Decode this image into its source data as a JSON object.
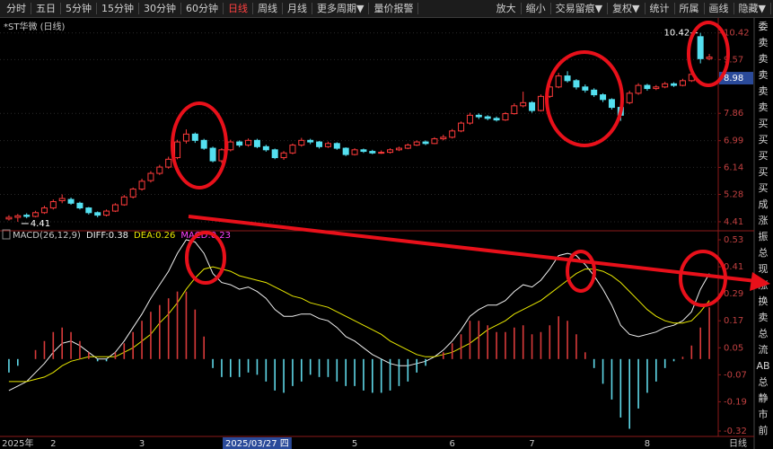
{
  "toolbar": {
    "left": [
      "分时",
      "五日",
      "5分钟",
      "15分钟",
      "30分钟",
      "60分钟",
      "日线",
      "周线",
      "月线",
      "更多周期▼",
      "量价报警"
    ],
    "right": [
      "放大",
      "缩小",
      "交易留痕▼",
      "复权▼",
      "统计",
      "所属",
      "画线",
      "隐藏▼"
    ]
  },
  "sidebar": [
    "委",
    "卖",
    "卖",
    "卖",
    "卖",
    "卖",
    "买",
    "买",
    "买",
    "买",
    "买",
    "成",
    "涨",
    "振",
    "总",
    "现",
    "涨",
    "换",
    "卖",
    "总",
    "流",
    "AB",
    "总",
    "静",
    "市",
    "前"
  ],
  "period_label": "日线",
  "chart_data": [
    {
      "type": "candlestick",
      "title": "*ST华微 (日线)",
      "categories": [
        null,
        "2025年",
        null,
        null,
        null,
        "2",
        null,
        null,
        null,
        null,
        null,
        null,
        null,
        null,
        null,
        "3",
        null,
        null,
        null,
        null,
        null,
        null,
        null,
        null,
        null,
        null,
        null,
        null,
        "2025/03/27 四",
        null,
        null,
        null,
        null,
        null,
        null,
        null,
        null,
        null,
        null,
        "5",
        null,
        null,
        null,
        null,
        null,
        null,
        null,
        null,
        null,
        null,
        "6",
        null,
        null,
        null,
        null,
        null,
        null,
        null,
        null,
        "7",
        null,
        null,
        null,
        null,
        null,
        null,
        null,
        null,
        null,
        null,
        null,
        null,
        "8",
        null,
        null,
        null,
        null,
        null,
        null,
        null
      ],
      "open": [
        4.5,
        4.55,
        4.62,
        4.58,
        4.7,
        4.85,
        5.08,
        5.12,
        5.0,
        4.85,
        4.7,
        4.62,
        4.75,
        4.95,
        5.2,
        5.45,
        5.72,
        5.95,
        6.15,
        6.45,
        6.98,
        7.2,
        7.0,
        6.75,
        6.35,
        6.7,
        6.95,
        6.85,
        7.0,
        6.8,
        6.7,
        6.45,
        6.6,
        6.85,
        7.0,
        6.95,
        6.8,
        6.9,
        6.75,
        6.55,
        6.7,
        6.65,
        6.6,
        6.62,
        6.7,
        6.75,
        6.85,
        6.95,
        6.9,
        7.05,
        7.1,
        7.3,
        7.55,
        7.8,
        7.75,
        7.7,
        7.65,
        7.85,
        8.1,
        8.2,
        7.95,
        8.4,
        8.7,
        9.05,
        8.9,
        8.7,
        8.6,
        8.45,
        8.3,
        8.05,
        8.2,
        8.5,
        8.75,
        8.65,
        8.7,
        8.8,
        8.75,
        8.9,
        10.3,
        9.6
      ],
      "high": [
        4.62,
        4.66,
        4.68,
        4.76,
        4.92,
        5.12,
        5.28,
        5.18,
        5.05,
        4.88,
        4.74,
        4.8,
        5.0,
        5.26,
        5.5,
        5.78,
        6.02,
        6.22,
        6.48,
        7.02,
        7.35,
        7.25,
        7.05,
        6.8,
        6.75,
        7.02,
        7.0,
        7.06,
        7.05,
        6.86,
        6.74,
        6.66,
        6.9,
        7.08,
        7.05,
        6.98,
        6.96,
        6.94,
        6.78,
        6.75,
        6.74,
        6.7,
        6.68,
        6.75,
        6.8,
        6.9,
        7.0,
        7.0,
        7.1,
        7.18,
        7.36,
        7.6,
        7.88,
        7.86,
        7.8,
        7.76,
        7.9,
        8.18,
        8.55,
        8.25,
        8.46,
        8.78,
        9.15,
        9.2,
        8.95,
        8.78,
        8.66,
        8.5,
        8.34,
        8.1,
        8.58,
        8.82,
        8.8,
        8.76,
        8.86,
        8.85,
        8.96,
        9.18,
        10.42,
        9.75
      ],
      "low": [
        4.45,
        4.41,
        4.52,
        4.55,
        4.66,
        4.8,
        5.0,
        4.95,
        4.8,
        4.64,
        4.55,
        4.58,
        4.72,
        4.92,
        5.15,
        5.4,
        5.66,
        5.9,
        6.1,
        6.4,
        6.9,
        6.92,
        6.7,
        6.3,
        6.28,
        6.65,
        6.78,
        6.8,
        6.75,
        6.64,
        6.4,
        6.38,
        6.56,
        6.8,
        6.88,
        6.74,
        6.76,
        6.7,
        6.5,
        6.52,
        6.6,
        6.56,
        6.57,
        6.58,
        6.66,
        6.72,
        6.82,
        6.85,
        6.88,
        7.0,
        7.06,
        7.26,
        7.5,
        7.68,
        7.64,
        7.6,
        7.62,
        7.82,
        8.05,
        7.88,
        7.92,
        8.35,
        8.66,
        8.84,
        8.62,
        8.52,
        8.38,
        8.22,
        7.98,
        7.62,
        8.15,
        8.45,
        8.58,
        8.6,
        8.66,
        8.7,
        8.72,
        8.86,
        9.45,
        9.55
      ],
      "close": [
        4.55,
        4.6,
        4.58,
        4.7,
        4.85,
        5.05,
        5.15,
        5.0,
        4.85,
        4.7,
        4.62,
        4.75,
        4.95,
        5.2,
        5.45,
        5.7,
        5.95,
        6.15,
        6.4,
        6.95,
        7.2,
        7.0,
        6.75,
        6.35,
        6.7,
        6.95,
        6.85,
        7.0,
        6.8,
        6.7,
        6.45,
        6.6,
        6.85,
        7.0,
        6.95,
        6.8,
        6.9,
        6.75,
        6.55,
        6.7,
        6.65,
        6.6,
        6.62,
        6.7,
        6.75,
        6.85,
        6.95,
        6.9,
        7.05,
        7.1,
        7.3,
        7.55,
        7.8,
        7.75,
        7.7,
        7.65,
        7.85,
        8.1,
        8.2,
        7.95,
        8.4,
        8.7,
        9.05,
        8.9,
        8.7,
        8.6,
        8.45,
        8.3,
        8.05,
        7.8,
        8.5,
        8.75,
        8.65,
        8.7,
        8.8,
        8.75,
        8.9,
        9.1,
        9.6,
        9.65
      ],
      "colors": {
        "up": "#ff3b3b",
        "down": "#54e0f0"
      },
      "high_mark": 10.42,
      "low_mark": 4.41,
      "last_price": 8.98,
      "ylim": [
        4.18,
        10.61
      ],
      "yticks": [
        4.41,
        5.28,
        6.14,
        6.99,
        7.86,
        9.57,
        10.42
      ],
      "grid": true
    },
    {
      "type": "macd",
      "title": "MACD(26,12,9)",
      "series": [
        {
          "name": "DIFF:0.38",
          "color": "#f0f0f0",
          "values": [
            -0.14,
            -0.12,
            -0.1,
            -0.06,
            -0.02,
            0.03,
            0.07,
            0.08,
            0.06,
            0.03,
            0.0,
            0.0,
            0.03,
            0.08,
            0.14,
            0.2,
            0.27,
            0.33,
            0.39,
            0.47,
            0.53,
            0.52,
            0.47,
            0.38,
            0.34,
            0.33,
            0.31,
            0.32,
            0.3,
            0.27,
            0.22,
            0.19,
            0.19,
            0.2,
            0.2,
            0.18,
            0.17,
            0.14,
            0.1,
            0.08,
            0.05,
            0.02,
            0.0,
            -0.02,
            -0.03,
            -0.03,
            -0.02,
            -0.01,
            0.01,
            0.04,
            0.08,
            0.13,
            0.19,
            0.22,
            0.24,
            0.24,
            0.26,
            0.3,
            0.33,
            0.32,
            0.35,
            0.4,
            0.46,
            0.47,
            0.46,
            0.42,
            0.37,
            0.31,
            0.24,
            0.15,
            0.11,
            0.1,
            0.11,
            0.12,
            0.14,
            0.15,
            0.17,
            0.21,
            0.31,
            0.38
          ]
        },
        {
          "name": "DEA:0.26",
          "color": "#e8e800",
          "values": [
            -0.1,
            -0.1,
            -0.1,
            -0.09,
            -0.08,
            -0.06,
            -0.03,
            -0.01,
            0.0,
            0.01,
            0.01,
            0.01,
            0.01,
            0.03,
            0.05,
            0.08,
            0.11,
            0.16,
            0.2,
            0.25,
            0.31,
            0.36,
            0.4,
            0.41,
            0.4,
            0.39,
            0.37,
            0.36,
            0.35,
            0.34,
            0.32,
            0.3,
            0.28,
            0.27,
            0.25,
            0.24,
            0.23,
            0.21,
            0.19,
            0.17,
            0.15,
            0.13,
            0.11,
            0.08,
            0.06,
            0.04,
            0.02,
            0.01,
            0.01,
            0.02,
            0.03,
            0.05,
            0.07,
            0.1,
            0.13,
            0.15,
            0.17,
            0.2,
            0.22,
            0.24,
            0.26,
            0.29,
            0.32,
            0.35,
            0.38,
            0.4,
            0.4,
            0.39,
            0.37,
            0.34,
            0.3,
            0.26,
            0.22,
            0.19,
            0.17,
            0.16,
            0.16,
            0.17,
            0.21,
            0.26
          ]
        },
        {
          "name": "MACD:0.23",
          "color": "#ff40ff",
          "type": "bar",
          "values": [
            -0.06,
            -0.03,
            0.0,
            0.04,
            0.08,
            0.12,
            0.14,
            0.12,
            0.08,
            0.03,
            -0.01,
            -0.01,
            0.03,
            0.07,
            0.12,
            0.17,
            0.21,
            0.24,
            0.27,
            0.3,
            0.3,
            0.22,
            0.1,
            -0.04,
            -0.08,
            -0.08,
            -0.08,
            -0.06,
            -0.07,
            -0.1,
            -0.14,
            -0.15,
            -0.12,
            -0.1,
            -0.07,
            -0.08,
            -0.08,
            -0.1,
            -0.12,
            -0.12,
            -0.14,
            -0.15,
            -0.15,
            -0.14,
            -0.12,
            -0.1,
            -0.06,
            -0.03,
            0.0,
            0.03,
            0.07,
            0.11,
            0.17,
            0.17,
            0.15,
            0.12,
            0.12,
            0.14,
            0.15,
            0.11,
            0.12,
            0.15,
            0.19,
            0.17,
            0.11,
            0.03,
            -0.04,
            -0.11,
            -0.18,
            -0.26,
            -0.31,
            -0.22,
            -0.15,
            -0.1,
            -0.04,
            -0.01,
            0.01,
            0.06,
            0.14,
            0.23
          ]
        }
      ],
      "bar_colors": {
        "up": "#d83a3a",
        "down": "#5fd8e8"
      },
      "ylim": [
        -0.34,
        0.57
      ],
      "yticks": [
        0.53,
        0.41,
        0.29,
        0.17,
        0.05,
        -0.07,
        -0.19,
        -0.32
      ]
    }
  ]
}
